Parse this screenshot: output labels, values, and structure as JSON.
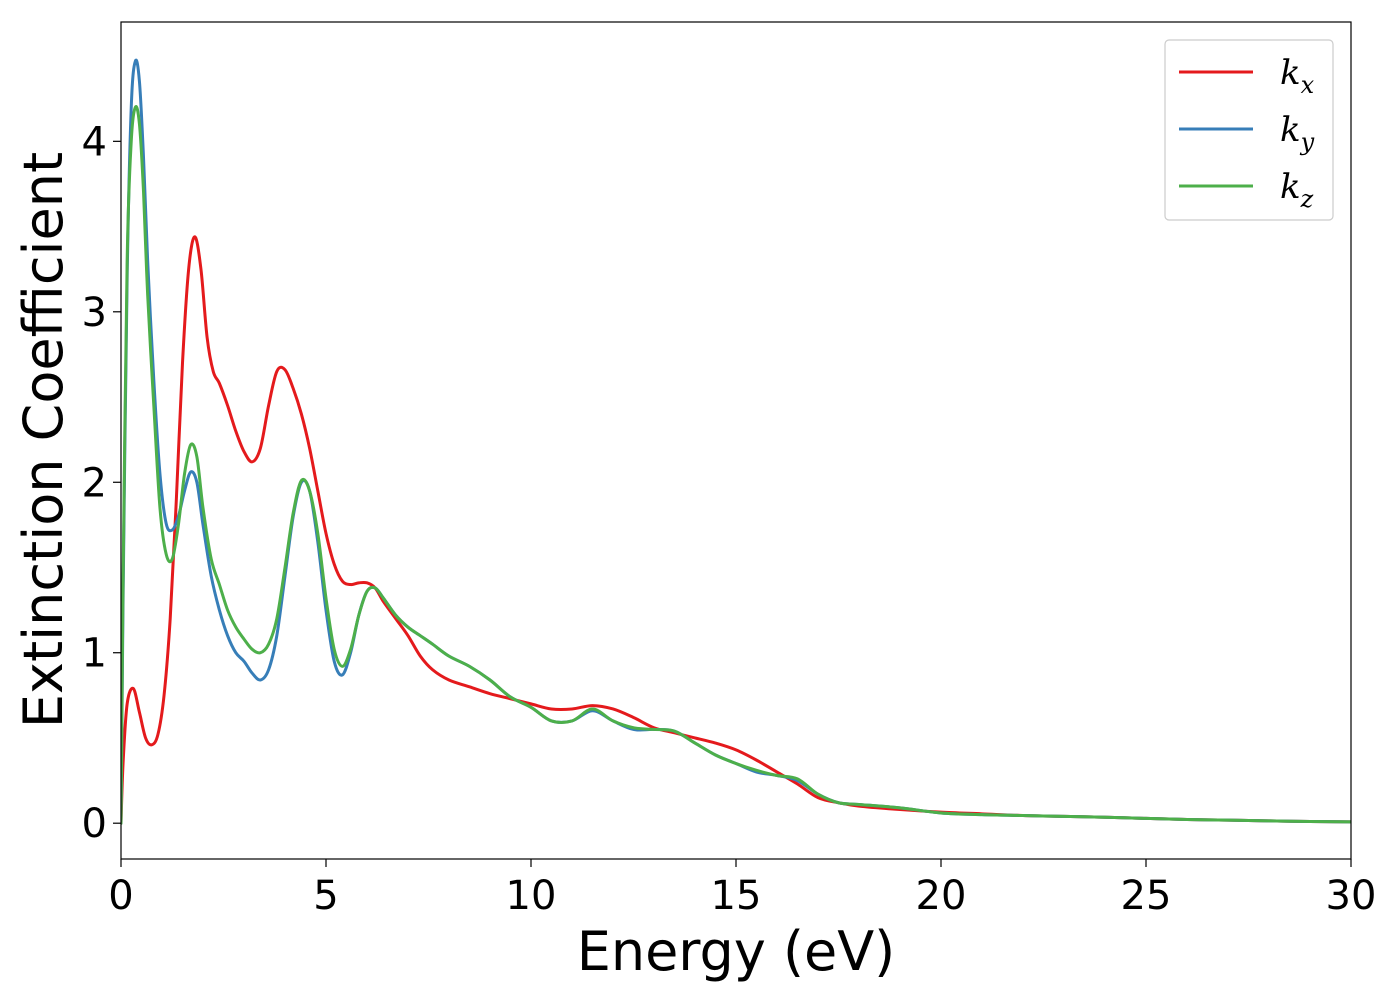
{
  "chart_data": {
    "type": "line",
    "title": "",
    "xlabel": "Energy (eV)",
    "ylabel": "Extinction Coefficient",
    "xlim": [
      0,
      30
    ],
    "ylim": [
      -0.21,
      4.7
    ],
    "xticks": [
      0,
      5,
      10,
      15,
      20,
      25,
      30
    ],
    "yticks": [
      0,
      1,
      2,
      3,
      4
    ],
    "grid": false,
    "legend_position": "top-right",
    "series": [
      {
        "name": "k_x",
        "label_main": "k",
        "label_sub": "x",
        "color": "#e41a1c",
        "x": [
          0,
          0.05,
          0.15,
          0.3,
          0.45,
          0.6,
          0.75,
          0.9,
          1.05,
          1.2,
          1.35,
          1.5,
          1.65,
          1.8,
          1.95,
          2.1,
          2.25,
          2.4,
          2.6,
          2.8,
          3.0,
          3.2,
          3.4,
          3.6,
          3.8,
          4.0,
          4.2,
          4.4,
          4.6,
          4.8,
          5.0,
          5.2,
          5.4,
          5.6,
          5.8,
          6.0,
          6.2,
          6.4,
          6.7,
          7.0,
          7.3,
          7.6,
          8.0,
          8.5,
          9.0,
          9.5,
          10.0,
          10.5,
          11.0,
          11.5,
          12.0,
          12.5,
          13.0,
          13.5,
          14.0,
          14.5,
          15.0,
          15.5,
          16.0,
          16.5,
          17.0,
          17.5,
          18.0,
          19.0,
          20.0,
          21.0,
          22.0,
          23.0,
          24.0,
          25.0,
          26.0,
          27.0,
          28.0,
          29.0,
          30.0
        ],
        "values": [
          0.0,
          0.35,
          0.7,
          0.79,
          0.65,
          0.5,
          0.46,
          0.52,
          0.75,
          1.2,
          1.9,
          2.7,
          3.25,
          3.44,
          3.25,
          2.85,
          2.65,
          2.58,
          2.45,
          2.3,
          2.18,
          2.12,
          2.2,
          2.45,
          2.65,
          2.66,
          2.55,
          2.4,
          2.2,
          1.95,
          1.7,
          1.52,
          1.42,
          1.4,
          1.41,
          1.41,
          1.38,
          1.3,
          1.2,
          1.1,
          0.98,
          0.9,
          0.84,
          0.8,
          0.76,
          0.73,
          0.7,
          0.67,
          0.67,
          0.69,
          0.67,
          0.62,
          0.56,
          0.53,
          0.5,
          0.47,
          0.43,
          0.37,
          0.3,
          0.23,
          0.15,
          0.12,
          0.1,
          0.08,
          0.065,
          0.055,
          0.045,
          0.04,
          0.035,
          0.028,
          0.022,
          0.018,
          0.014,
          0.01,
          0.008
        ]
      },
      {
        "name": "k_y",
        "label_main": "k",
        "label_sub": "y",
        "color": "#377eb8",
        "x": [
          0,
          0.05,
          0.15,
          0.25,
          0.35,
          0.45,
          0.55,
          0.65,
          0.8,
          0.95,
          1.1,
          1.25,
          1.4,
          1.55,
          1.7,
          1.85,
          2.0,
          2.2,
          2.4,
          2.6,
          2.8,
          3.0,
          3.2,
          3.4,
          3.6,
          3.8,
          4.0,
          4.2,
          4.4,
          4.6,
          4.8,
          5.0,
          5.2,
          5.4,
          5.6,
          5.8,
          6.0,
          6.2,
          6.4,
          6.7,
          7.0,
          7.3,
          7.6,
          8.0,
          8.5,
          9.0,
          9.5,
          10.0,
          10.5,
          11.0,
          11.5,
          12.0,
          12.5,
          13.0,
          13.5,
          14.0,
          14.5,
          15.0,
          15.5,
          16.0,
          16.5,
          17.0,
          17.5,
          18.0,
          19.0,
          20.0,
          21.0,
          22.0,
          23.0,
          24.0,
          25.0,
          26.0,
          27.0,
          28.0,
          29.0,
          30.0
        ],
        "values": [
          0.0,
          1.3,
          3.2,
          4.2,
          4.47,
          4.35,
          3.9,
          3.3,
          2.6,
          2.05,
          1.76,
          1.72,
          1.8,
          1.95,
          2.06,
          2.0,
          1.75,
          1.45,
          1.25,
          1.1,
          1.0,
          0.95,
          0.88,
          0.84,
          0.9,
          1.1,
          1.45,
          1.8,
          2.0,
          1.95,
          1.65,
          1.25,
          0.95,
          0.87,
          1.0,
          1.22,
          1.36,
          1.38,
          1.32,
          1.22,
          1.15,
          1.1,
          1.05,
          0.98,
          0.92,
          0.84,
          0.74,
          0.68,
          0.6,
          0.6,
          0.66,
          0.6,
          0.55,
          0.55,
          0.54,
          0.47,
          0.4,
          0.35,
          0.3,
          0.28,
          0.25,
          0.17,
          0.12,
          0.11,
          0.09,
          0.06,
          0.05,
          0.045,
          0.04,
          0.035,
          0.028,
          0.022,
          0.018,
          0.014,
          0.01,
          0.008
        ]
      },
      {
        "name": "k_z",
        "label_main": "k",
        "label_sub": "z",
        "color": "#4daf4a",
        "x": [
          0,
          0.05,
          0.15,
          0.25,
          0.35,
          0.45,
          0.55,
          0.65,
          0.8,
          0.95,
          1.1,
          1.25,
          1.4,
          1.55,
          1.7,
          1.85,
          2.0,
          2.2,
          2.4,
          2.6,
          2.8,
          3.0,
          3.2,
          3.4,
          3.6,
          3.8,
          4.0,
          4.2,
          4.4,
          4.6,
          4.8,
          5.0,
          5.2,
          5.4,
          5.6,
          5.8,
          6.0,
          6.2,
          6.4,
          6.7,
          7.0,
          7.3,
          7.6,
          8.0,
          8.5,
          9.0,
          9.5,
          10.0,
          10.5,
          11.0,
          11.5,
          12.0,
          12.5,
          13.0,
          13.5,
          14.0,
          14.5,
          15.0,
          15.5,
          16.0,
          16.5,
          17.0,
          17.5,
          18.0,
          19.0,
          20.0,
          21.0,
          22.0,
          23.0,
          24.0,
          25.0,
          26.0,
          27.0,
          28.0,
          29.0,
          30.0
        ],
        "values": [
          0.0,
          1.4,
          3.3,
          4.0,
          4.2,
          4.1,
          3.7,
          3.1,
          2.45,
          1.85,
          1.58,
          1.55,
          1.75,
          2.05,
          2.22,
          2.15,
          1.85,
          1.55,
          1.4,
          1.25,
          1.15,
          1.08,
          1.02,
          1.0,
          1.05,
          1.2,
          1.5,
          1.82,
          2.01,
          1.95,
          1.7,
          1.32,
          1.02,
          0.92,
          1.02,
          1.22,
          1.36,
          1.38,
          1.32,
          1.22,
          1.15,
          1.1,
          1.05,
          0.98,
          0.92,
          0.84,
          0.74,
          0.68,
          0.6,
          0.6,
          0.67,
          0.6,
          0.56,
          0.55,
          0.54,
          0.47,
          0.4,
          0.35,
          0.31,
          0.28,
          0.26,
          0.17,
          0.12,
          0.11,
          0.09,
          0.06,
          0.05,
          0.045,
          0.04,
          0.035,
          0.028,
          0.022,
          0.018,
          0.014,
          0.01,
          0.008
        ]
      }
    ]
  }
}
